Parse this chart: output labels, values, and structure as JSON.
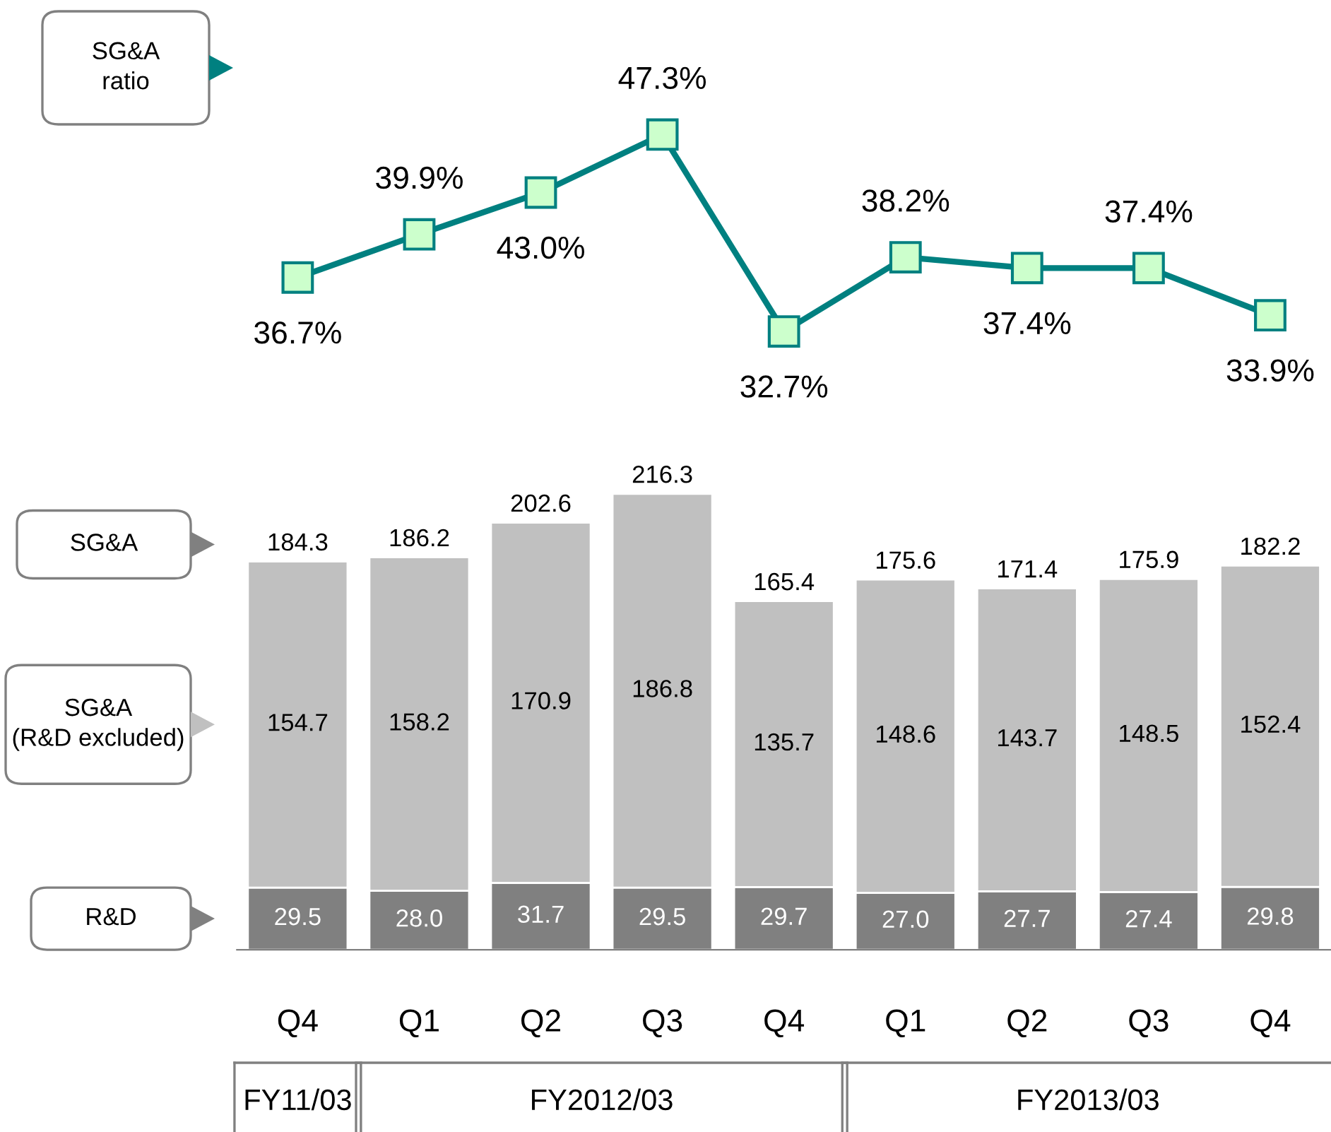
{
  "chart_data": [
    {
      "type": "line",
      "series": [
        {
          "name": "SG&A\nratio",
          "color": "#008080",
          "values": [
            36.7,
            39.9,
            43.0,
            47.3,
            32.7,
            38.2,
            37.4,
            37.4,
            33.9
          ],
          "value_labels": [
            "36.7%",
            "39.9%",
            "43.0%",
            "47.3%",
            "32.7%",
            "38.2%",
            "37.4%",
            "37.4%",
            "33.9%"
          ]
        }
      ],
      "marker": "square",
      "tick_labels": false,
      "legend": "left"
    },
    {
      "type": "bar",
      "stacked": true,
      "categories": [
        "Q4",
        "Q1",
        "Q2",
        "Q3",
        "Q4",
        "Q1",
        "Q2",
        "Q3",
        "Q4"
      ],
      "series": [
        {
          "name": "R&D",
          "color": "#808080",
          "values": [
            29.5,
            28.0,
            31.7,
            29.5,
            29.7,
            27.0,
            27.7,
            27.4,
            29.8
          ],
          "value_labels": [
            "29.5",
            "28.0",
            "31.7",
            "29.5",
            "29.7",
            "27.0",
            "27.7",
            "27.4",
            "29.8"
          ]
        },
        {
          "name": "SG&A\n(R&D excluded)",
          "color": "#c0c0c0",
          "values": [
            154.7,
            158.2,
            170.9,
            186.8,
            135.7,
            148.6,
            143.7,
            148.5,
            152.4
          ]
        }
      ],
      "data_labels": true,
      "totals": [
        "184.3",
        "186.2",
        "202.6",
        "216.3",
        "165.4",
        "175.6",
        "171.4",
        "175.9",
        "182.2"
      ],
      "annotations": [
        "SG&A",
        "FY11/03",
        "FY2012/03",
        "FY2013/03"
      ],
      "tick_labels": "x",
      "legend": "left"
    }
  ]
}
